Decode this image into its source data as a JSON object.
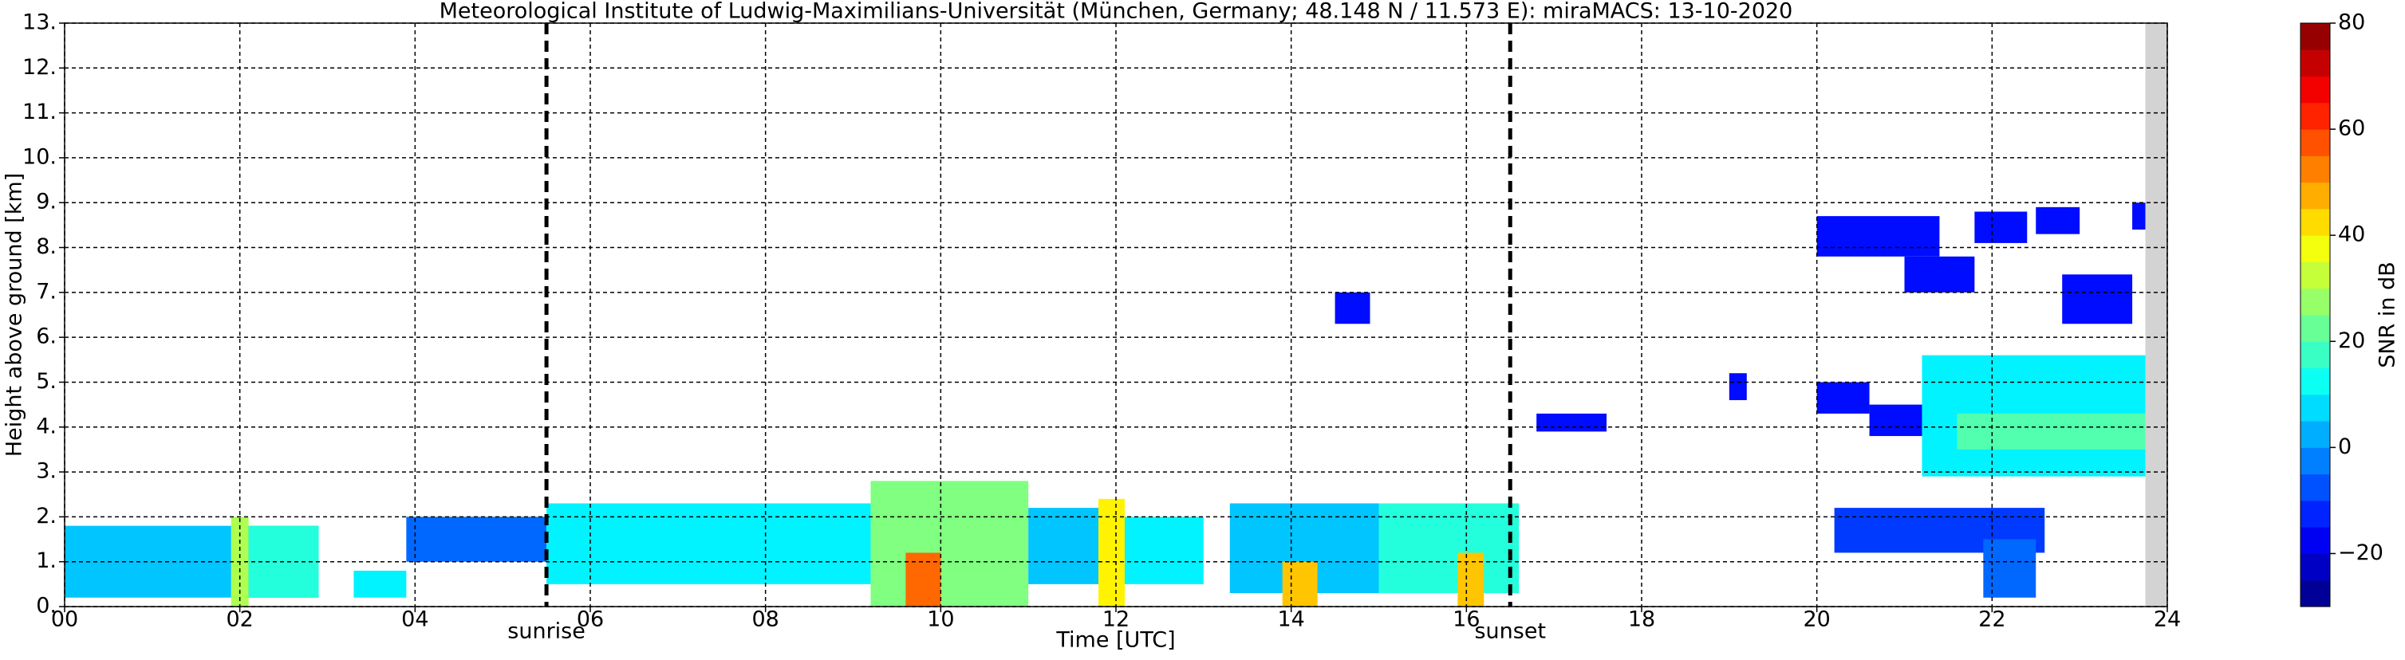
{
  "chart_data": {
    "type": "time-height",
    "title": "Meteorological Institute of Ludwig-Maximilians-Universität (München, Germany; 48.148 N / 11.573 E):    miraMACS: 13-10-2020",
    "x_label": "Time [UTC]",
    "y_label": "Height above ground [km]",
    "colorbar_label": "SNR in dB",
    "colormap": "jet",
    "grid": true,
    "xlim": [
      0,
      24
    ],
    "ylim": [
      0,
      13
    ],
    "clim": [
      -30,
      80
    ],
    "xticks": [
      {
        "value": 0,
        "label": "00"
      },
      {
        "value": 2,
        "label": "02"
      },
      {
        "value": 4,
        "label": "04"
      },
      {
        "value": 6,
        "label": "06"
      },
      {
        "value": 8,
        "label": "08"
      },
      {
        "value": 10,
        "label": "10"
      },
      {
        "value": 12,
        "label": "12"
      },
      {
        "value": 14,
        "label": "14"
      },
      {
        "value": 16,
        "label": "16"
      },
      {
        "value": 18,
        "label": "18"
      },
      {
        "value": 20,
        "label": "20"
      },
      {
        "value": 22,
        "label": "22"
      },
      {
        "value": 24,
        "label": "24"
      }
    ],
    "yticks": [
      {
        "value": 0,
        "label": "0."
      },
      {
        "value": 1,
        "label": "1."
      },
      {
        "value": 2,
        "label": "2."
      },
      {
        "value": 3,
        "label": "3."
      },
      {
        "value": 4,
        "label": "4."
      },
      {
        "value": 5,
        "label": "5."
      },
      {
        "value": 6,
        "label": "6."
      },
      {
        "value": 7,
        "label": "7."
      },
      {
        "value": 8,
        "label": "8."
      },
      {
        "value": 9,
        "label": "9."
      },
      {
        "value": 10,
        "label": "10."
      },
      {
        "value": 11,
        "label": "11."
      },
      {
        "value": 12,
        "label": "12."
      },
      {
        "value": 13,
        "label": "13."
      }
    ],
    "cticks": [
      {
        "value": -20,
        "label": "−20"
      },
      0,
      20,
      40,
      60,
      80
    ],
    "markers": [
      {
        "x": 5.5,
        "label": "sunrise"
      },
      {
        "x": 16.5,
        "label": "sunset"
      }
    ],
    "no_data_x": [
      23.75,
      24
    ],
    "regions": [
      [
        0,
        2.9,
        0.2,
        1.8,
        5
      ],
      [
        1.9,
        2.1,
        0,
        2.0,
        30
      ],
      [
        2.1,
        2.9,
        0.2,
        1.8,
        15
      ],
      [
        3.3,
        3.9,
        0.2,
        0.8,
        10
      ],
      [
        3.9,
        5.5,
        1.0,
        2.0,
        -5
      ],
      [
        5.5,
        9.2,
        0.5,
        2.3,
        10
      ],
      [
        9.2,
        11,
        0,
        2.8,
        25
      ],
      [
        9.6,
        10.0,
        0,
        1.2,
        55
      ],
      [
        11,
        11.8,
        0.5,
        2.2,
        5
      ],
      [
        11.8,
        12.1,
        0,
        2.4,
        40
      ],
      [
        12.1,
        13.0,
        0.5,
        2.0,
        10
      ],
      [
        13.3,
        15.0,
        0.3,
        2.3,
        5
      ],
      [
        13.9,
        14.3,
        0,
        1.0,
        45
      ],
      [
        15.0,
        16.6,
        0.3,
        2.3,
        15
      ],
      [
        15.9,
        16.2,
        0,
        1.2,
        45
      ],
      [
        14.5,
        14.9,
        6.3,
        7.0,
        -15
      ],
      [
        16.8,
        17.6,
        3.9,
        4.3,
        -15
      ],
      [
        19.0,
        19.2,
        4.6,
        5.2,
        -15
      ],
      [
        20.0,
        20.6,
        4.3,
        5.0,
        -15
      ],
      [
        20.6,
        21.3,
        3.8,
        4.5,
        -15
      ],
      [
        21.2,
        23.75,
        2.9,
        5.6,
        10
      ],
      [
        21.6,
        23.75,
        3.5,
        4.3,
        20
      ],
      [
        20.0,
        21.4,
        7.8,
        8.7,
        -15
      ],
      [
        21.0,
        21.8,
        7.0,
        7.8,
        -15
      ],
      [
        21.8,
        22.4,
        8.1,
        8.8,
        -15
      ],
      [
        22.5,
        23.0,
        8.3,
        8.9,
        -15
      ],
      [
        22.8,
        23.6,
        6.3,
        7.4,
        -15
      ],
      [
        23.6,
        23.75,
        8.4,
        9.0,
        -15
      ],
      [
        20.2,
        22.6,
        1.2,
        2.2,
        -10
      ],
      [
        21.9,
        22.5,
        0.2,
        1.5,
        -5
      ]
    ]
  }
}
